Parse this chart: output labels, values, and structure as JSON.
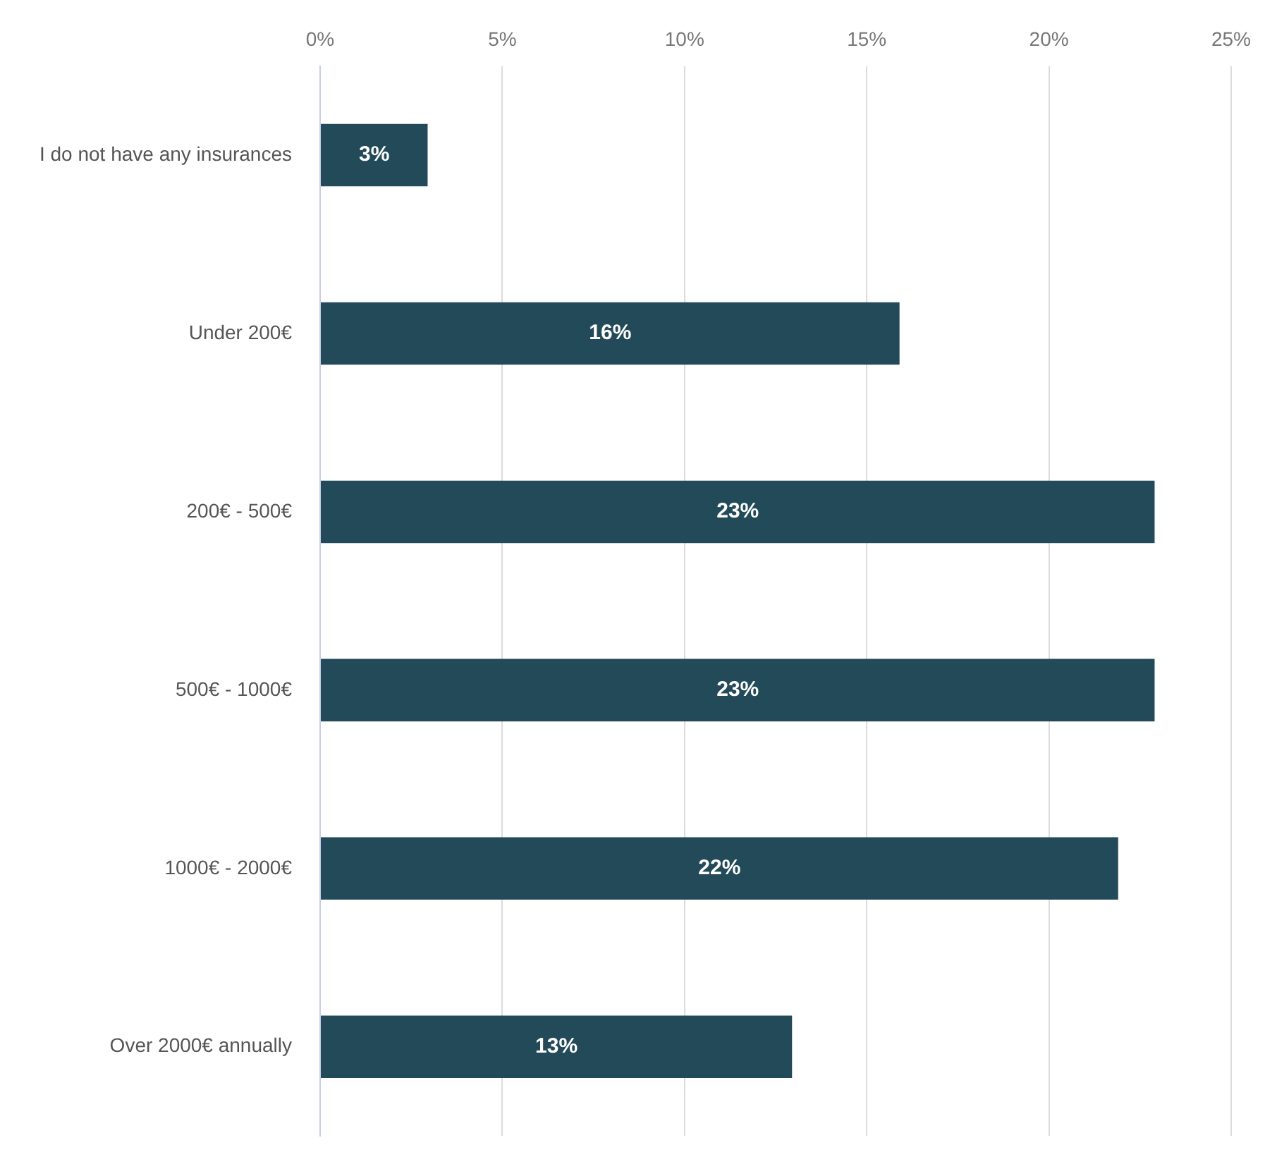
{
  "chart_data": {
    "type": "bar",
    "orientation": "horizontal",
    "categories": [
      "I do not have any insurances",
      "Under 200€",
      "200€ - 500€",
      "500€ - 1000€",
      "1000€ - 2000€",
      "Over 2000€ annually"
    ],
    "values": [
      2.95,
      15.9,
      22.9,
      22.9,
      21.9,
      12.95
    ],
    "value_labels": [
      "3%",
      "16%",
      "23%",
      "23%",
      "22%",
      "13%"
    ],
    "color": "#234a59",
    "xlim": [
      0,
      25
    ],
    "xticks": [
      {
        "value": 0,
        "label": "0%"
      },
      {
        "value": 5,
        "label": "5%"
      },
      {
        "value": 10,
        "label": "10%"
      },
      {
        "value": 15,
        "label": "15%"
      },
      {
        "value": 20,
        "label": "20%"
      },
      {
        "value": 25,
        "label": "25%"
      }
    ],
    "grid": "x",
    "legend": false
  }
}
